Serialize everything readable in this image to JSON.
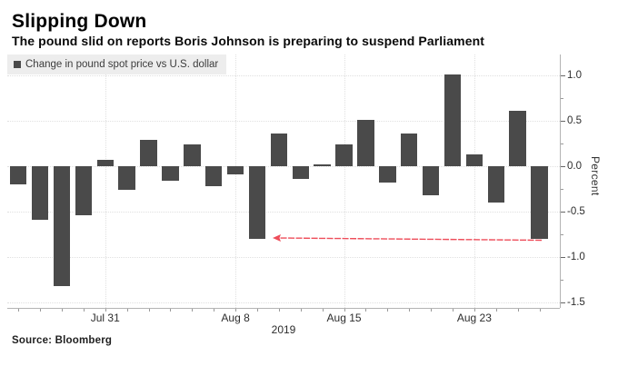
{
  "header": {
    "title": "Slipping Down",
    "subtitle": "The pound slid on reports Boris Johnson is preparing to suspend Parliament"
  },
  "legend": {
    "swatch_icon": "series-swatch-square",
    "swatch_color": "#4a4a4a",
    "label": "Change in pound spot price vs U.S. dollar"
  },
  "source": "Source: Bloomberg",
  "chart_data": {
    "type": "bar",
    "title": "Slipping Down",
    "series_name": "Change in pound spot price vs U.S. dollar",
    "values": [
      -0.2,
      -0.59,
      -1.32,
      -0.54,
      0.07,
      -0.26,
      0.29,
      -0.16,
      0.24,
      -0.22,
      -0.09,
      -0.8,
      0.36,
      -0.14,
      0.02,
      0.24,
      0.51,
      -0.18,
      0.36,
      -0.32,
      1.01,
      0.13,
      -0.4,
      0.61,
      -0.8
    ],
    "bar_color": "#4a4a4a",
    "xlabel": "",
    "ylabel": "Percent",
    "ylim": [
      -1.56,
      1.23
    ],
    "grid": true,
    "y_ticks": [
      {
        "value": 1.0,
        "label": "1.0"
      },
      {
        "value": 0.5,
        "label": "0.5"
      },
      {
        "value": 0.0,
        "label": "0.0"
      },
      {
        "value": -0.5,
        "label": "-0.5"
      },
      {
        "value": -1.0,
        "label": "-1.0"
      },
      {
        "value": -1.5,
        "label": "-1.5"
      }
    ],
    "y_minor_tick_step": 0.25,
    "x_ticks": [
      {
        "label": "Jul 31",
        "bar_index": 4
      },
      {
        "label": "Aug 8",
        "bar_index": 10
      },
      {
        "label": "Aug 15",
        "bar_index": 15
      },
      {
        "label": "Aug 23",
        "bar_index": 21
      }
    ],
    "x_axis_secondary_label": "2019",
    "legend_position": "top-left",
    "annotation": {
      "type": "arrow",
      "color": "#ee4d5a",
      "points_from_bar_index": 24,
      "points_to_bar_index": 11,
      "at_value": -0.8,
      "meaning": "arrow from latest drop back to similar earlier drop"
    }
  }
}
